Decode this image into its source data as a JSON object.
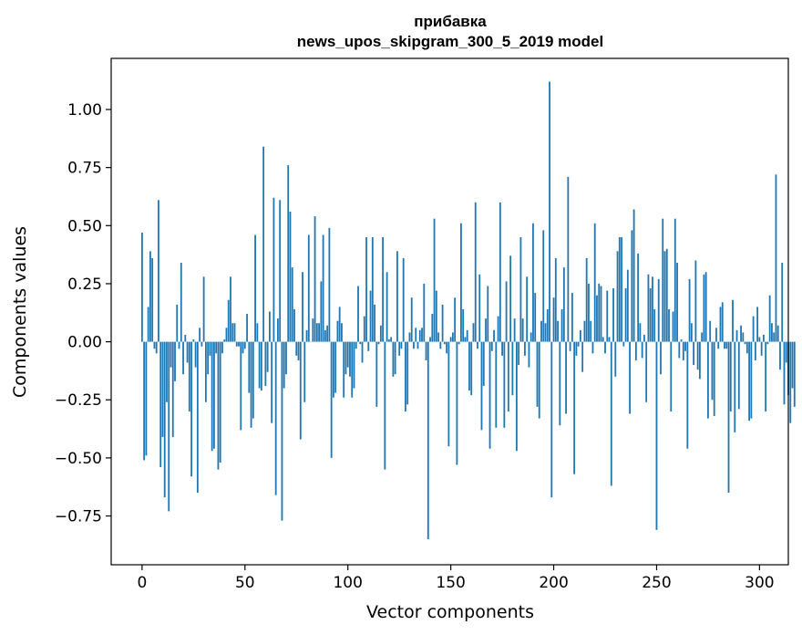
{
  "chart_data": {
    "type": "bar",
    "title": "прибавка",
    "subtitle": "news_upos_skipgram_300_5_2019 model",
    "xlabel": "Vector components",
    "ylabel": "Components values",
    "xlim": [
      -15,
      314
    ],
    "ylim": [
      -0.96,
      1.22
    ],
    "xticks": [
      0,
      50,
      100,
      150,
      200,
      250,
      300
    ],
    "yticks": [
      -0.75,
      -0.5,
      -0.25,
      0.0,
      0.25,
      0.5,
      0.75,
      1.0
    ],
    "xtick_labels": [
      "0",
      "50",
      "100",
      "150",
      "200",
      "250",
      "300"
    ],
    "ytick_labels": [
      "−0.75",
      "−0.50",
      "−0.25",
      "0.00",
      "0.25",
      "0.50",
      "0.75",
      "1.00"
    ],
    "grid": false,
    "bar_color": "#1f77b4",
    "values": [
      0.47,
      -0.51,
      -0.49,
      0.15,
      0.39,
      0.36,
      -0.03,
      -0.05,
      0.61,
      -0.54,
      -0.41,
      -0.67,
      -0.26,
      -0.73,
      -0.11,
      -0.41,
      -0.17,
      0.16,
      -0.03,
      0.34,
      -0.14,
      0.03,
      -0.09,
      -0.3,
      -0.58,
      0.01,
      -0.11,
      -0.65,
      0.06,
      -0.02,
      0.28,
      -0.26,
      -0.14,
      -0.06,
      -0.47,
      -0.46,
      -0.05,
      -0.55,
      -0.52,
      -0.05,
      0.01,
      0.06,
      0.18,
      0.28,
      0.08,
      0.08,
      -0.02,
      -0.02,
      -0.38,
      -0.05,
      -0.03,
      0.12,
      -0.22,
      -0.37,
      -0.33,
      0.46,
      0.08,
      -0.2,
      -0.21,
      0.84,
      -0.19,
      -0.13,
      0.13,
      -0.35,
      0.62,
      -0.66,
      0.1,
      0.61,
      -0.77,
      -0.2,
      -0.14,
      0.76,
      0.56,
      0.32,
      0.14,
      -0.06,
      -0.08,
      -0.42,
      0.3,
      -0.26,
      0.05,
      0.46,
      0.0,
      0.1,
      0.54,
      0.08,
      0.08,
      0.26,
      0.46,
      0.05,
      0.07,
      0.49,
      -0.5,
      -0.24,
      -0.22,
      0.09,
      0.15,
      0.08,
      -0.24,
      -0.14,
      -0.11,
      -0.15,
      -0.24,
      -0.2,
      -0.03,
      0.24,
      -0.01,
      -0.09,
      0.11,
      0.45,
      -0.04,
      0.22,
      0.45,
      0.16,
      -0.28,
      -0.01,
      0.07,
      0.45,
      -0.55,
      0.3,
      0.01,
      0.02,
      -0.15,
      -0.14,
      0.39,
      -0.06,
      -0.03,
      0.36,
      -0.3,
      -0.27,
      0.04,
      0.19,
      -0.03,
      0.06,
      -0.03,
      0.05,
      0.06,
      0.25,
      -0.08,
      -0.85,
      0.02,
      0.12,
      0.53,
      0.22,
      0.04,
      -0.03,
      0.16,
      -0.01,
      -0.05,
      -0.45,
      0.02,
      0.04,
      0.19,
      -0.53,
      -0.01,
      0.51,
      0.14,
      0.02,
      0.05,
      -0.21,
      -0.23,
      0.08,
      0.6,
      -0.03,
      0.29,
      -0.38,
      -0.19,
      0.1,
      0.24,
      -0.46,
      -0.04,
      0.05,
      -0.37,
      0.11,
      0.6,
      -0.06,
      -0.37,
      0.26,
      -0.3,
      0.37,
      -0.23,
      0.1,
      -0.47,
      -0.1,
      0.45,
      0.1,
      -0.06,
      0.28,
      -0.11,
      0.04,
      0.51,
      0.21,
      -0.28,
      -0.33,
      0.09,
      0.48,
      0.08,
      0.14,
      1.12,
      -0.67,
      0.19,
      0.36,
      0.09,
      -0.36,
      0.14,
      0.32,
      -0.31,
      0.71,
      -0.04,
      0.21,
      -0.57,
      -0.06,
      -0.02,
      0.05,
      -0.13,
      0.09,
      0.36,
      0.25,
      0.09,
      -0.05,
      0.51,
      0.2,
      0.25,
      0.24,
      0.02,
      -0.05,
      0.22,
      0.02,
      -0.62,
      0.23,
      -0.15,
      0.39,
      0.45,
      0.45,
      -0.02,
      0.23,
      0.31,
      -0.31,
      0.48,
      0.57,
      -0.08,
      0.38,
      0.08,
      -0.07,
      0.03,
      -0.26,
      0.29,
      0.23,
      0.28,
      0.14,
      -0.81,
      0.27,
      -0.14,
      0.53,
      0.39,
      0.4,
      0.14,
      -0.3,
      0.13,
      0.53,
      0.34,
      -0.07,
      0.01,
      -0.08,
      -0.04,
      -0.46,
      0.27,
      0.08,
      -0.1,
      0.35,
      -0.12,
      -0.16,
      0.04,
      0.29,
      0.3,
      -0.33,
      0.09,
      -0.25,
      -0.32,
      0.06,
      -0.03,
      0.15,
      0.17,
      -0.03,
      -0.03,
      -0.65,
      -0.3,
      0.18,
      -0.39,
      0.05,
      -0.29,
      0.07,
      0.04,
      -0.01,
      -0.05,
      -0.34,
      -0.33,
      0.11,
      -0.08,
      0.15,
      0.02,
      -0.06,
      0.03,
      -0.3,
      -0.01,
      0.2,
      0.08,
      0.04,
      0.72,
      0.07,
      -0.12,
      0.34,
      -0.27,
      -0.09,
      -0.23,
      -0.35,
      -0.2,
      -0.28
    ]
  }
}
